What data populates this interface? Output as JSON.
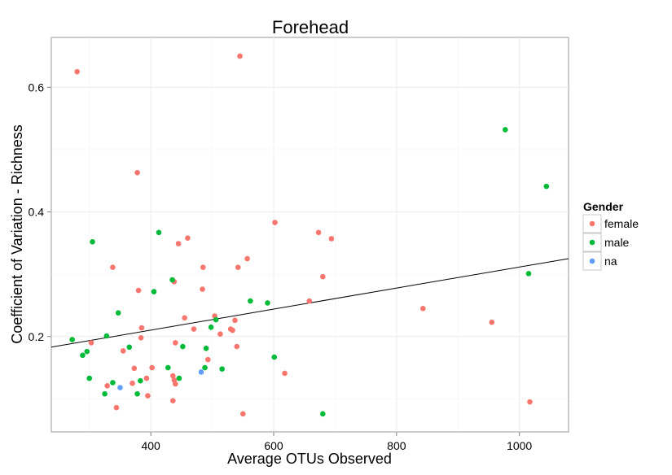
{
  "chart_data": {
    "type": "scatter",
    "title": "Forehead",
    "xlabel": "Average OTUs Observed",
    "ylabel": "Coefficient of Variation - Richness",
    "xlim": [
      238,
      1080
    ],
    "ylim": [
      0.047,
      0.68
    ],
    "x_ticks": [
      400,
      600,
      800,
      1000
    ],
    "x_tick_labels": [
      "400",
      "600",
      "800",
      "1000"
    ],
    "y_ticks": [
      0.2,
      0.4,
      0.6
    ],
    "y_tick_labels": [
      "0.2",
      "0.4",
      "0.6"
    ],
    "grid": true,
    "legend": {
      "title": "Gender",
      "position": "right",
      "entries": [
        {
          "label": "female",
          "color": "#f8766d"
        },
        {
          "label": "male",
          "color": "#00ba38"
        },
        {
          "label": "na",
          "color": "#619cff"
        }
      ]
    },
    "trend_line": {
      "x": [
        238,
        1080
      ],
      "y": [
        0.183,
        0.325
      ]
    },
    "series": [
      {
        "name": "female",
        "color": "#f8766d",
        "points": [
          [
            280,
            0.625
          ],
          [
            545,
            0.65
          ],
          [
            378,
            0.463
          ],
          [
            602,
            0.383
          ],
          [
            673,
            0.367
          ],
          [
            694,
            0.357
          ],
          [
            460,
            0.358
          ],
          [
            445,
            0.349
          ],
          [
            557,
            0.325
          ],
          [
            338,
            0.311
          ],
          [
            485,
            0.311
          ],
          [
            542,
            0.311
          ],
          [
            680,
            0.296
          ],
          [
            438,
            0.288
          ],
          [
            380,
            0.274
          ],
          [
            484,
            0.276
          ],
          [
            658,
            0.257
          ],
          [
            843,
            0.245
          ],
          [
            955,
            0.223
          ],
          [
            455,
            0.23
          ],
          [
            504,
            0.233
          ],
          [
            537,
            0.226
          ],
          [
            470,
            0.212
          ],
          [
            530,
            0.212
          ],
          [
            533,
            0.21
          ],
          [
            385,
            0.214
          ],
          [
            513,
            0.204
          ],
          [
            384,
            0.198
          ],
          [
            440,
            0.19
          ],
          [
            303,
            0.19
          ],
          [
            540,
            0.184
          ],
          [
            355,
            0.177
          ],
          [
            493,
            0.163
          ],
          [
            402,
            0.15
          ],
          [
            373,
            0.149
          ],
          [
            618,
            0.141
          ],
          [
            393,
            0.133
          ],
          [
            436,
            0.137
          ],
          [
            438,
            0.13
          ],
          [
            440,
            0.124
          ],
          [
            370,
            0.125
          ],
          [
            329,
            0.121
          ],
          [
            395,
            0.105
          ],
          [
            436,
            0.097
          ],
          [
            344,
            0.086
          ],
          [
            550,
            0.076
          ],
          [
            1017,
            0.095
          ]
        ]
      },
      {
        "name": "male",
        "color": "#00ba38",
        "points": [
          [
            977,
            0.532
          ],
          [
            1044,
            0.441
          ],
          [
            413,
            0.367
          ],
          [
            305,
            0.352
          ],
          [
            1015,
            0.301
          ],
          [
            435,
            0.291
          ],
          [
            405,
            0.272
          ],
          [
            562,
            0.257
          ],
          [
            590,
            0.254
          ],
          [
            347,
            0.238
          ],
          [
            506,
            0.227
          ],
          [
            498,
            0.215
          ],
          [
            272,
            0.195
          ],
          [
            328,
            0.201
          ],
          [
            452,
            0.184
          ],
          [
            490,
            0.181
          ],
          [
            365,
            0.183
          ],
          [
            296,
            0.176
          ],
          [
            289,
            0.17
          ],
          [
            601,
            0.167
          ],
          [
            428,
            0.15
          ],
          [
            488,
            0.15
          ],
          [
            516,
            0.148
          ],
          [
            300,
            0.133
          ],
          [
            446,
            0.133
          ],
          [
            383,
            0.129
          ],
          [
            338,
            0.126
          ],
          [
            325,
            0.108
          ],
          [
            378,
            0.108
          ],
          [
            680,
            0.076
          ]
        ]
      },
      {
        "name": "na",
        "color": "#619cff",
        "points": [
          [
            350,
            0.118
          ],
          [
            482,
            0.143
          ]
        ]
      }
    ]
  }
}
